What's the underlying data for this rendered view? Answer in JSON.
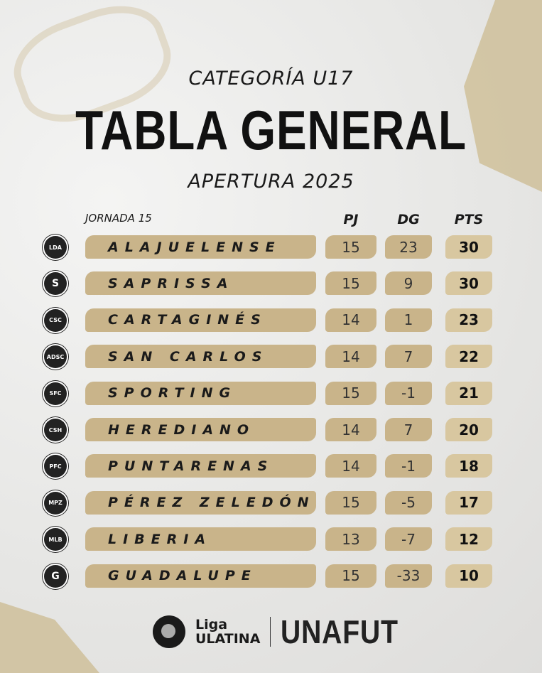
{
  "header": {
    "category": "CATEGORÍA U17",
    "title": "TABLA GENERAL",
    "tournament": "APERTURA 2025"
  },
  "table": {
    "round": "JORNADA 15",
    "columns": {
      "pj": "PJ",
      "dg": "DG",
      "pts": "PTS"
    },
    "rows": [
      {
        "logo": "LDA",
        "team": "ALAJUELENSE",
        "pj": "15",
        "dg": "23",
        "pts": "30"
      },
      {
        "logo": "S",
        "team": "SAPRISSA",
        "pj": "15",
        "dg": "9",
        "pts": "30"
      },
      {
        "logo": "CSC",
        "team": "CARTAGINÉS",
        "pj": "14",
        "dg": "1",
        "pts": "23"
      },
      {
        "logo": "ADSC",
        "team": "SAN CARLOS",
        "pj": "14",
        "dg": "7",
        "pts": "22"
      },
      {
        "logo": "SFC",
        "team": "SPORTING",
        "pj": "15",
        "dg": "-1",
        "pts": "21"
      },
      {
        "logo": "CSH",
        "team": "HEREDIANO",
        "pj": "14",
        "dg": "7",
        "pts": "20"
      },
      {
        "logo": "PFC",
        "team": "PUNTARENAS",
        "pj": "14",
        "dg": "-1",
        "pts": "18"
      },
      {
        "logo": "MPZ",
        "team": "PÉREZ ZELEDÓN",
        "pj": "15",
        "dg": "-5",
        "pts": "17"
      },
      {
        "logo": "MLB",
        "team": "LIBERIA",
        "pj": "13",
        "dg": "-7",
        "pts": "12"
      },
      {
        "logo": "G",
        "team": "GUADALUPE",
        "pj": "15",
        "dg": "-33",
        "pts": "10"
      }
    ]
  },
  "footer": {
    "liga_line1": "Liga",
    "liga_line2": "ULATINA",
    "unafut": "UNAFUT"
  },
  "colors": {
    "gold": "#c9b48a",
    "pts_gold": "#d8c7a0",
    "background": "#ebebea"
  }
}
